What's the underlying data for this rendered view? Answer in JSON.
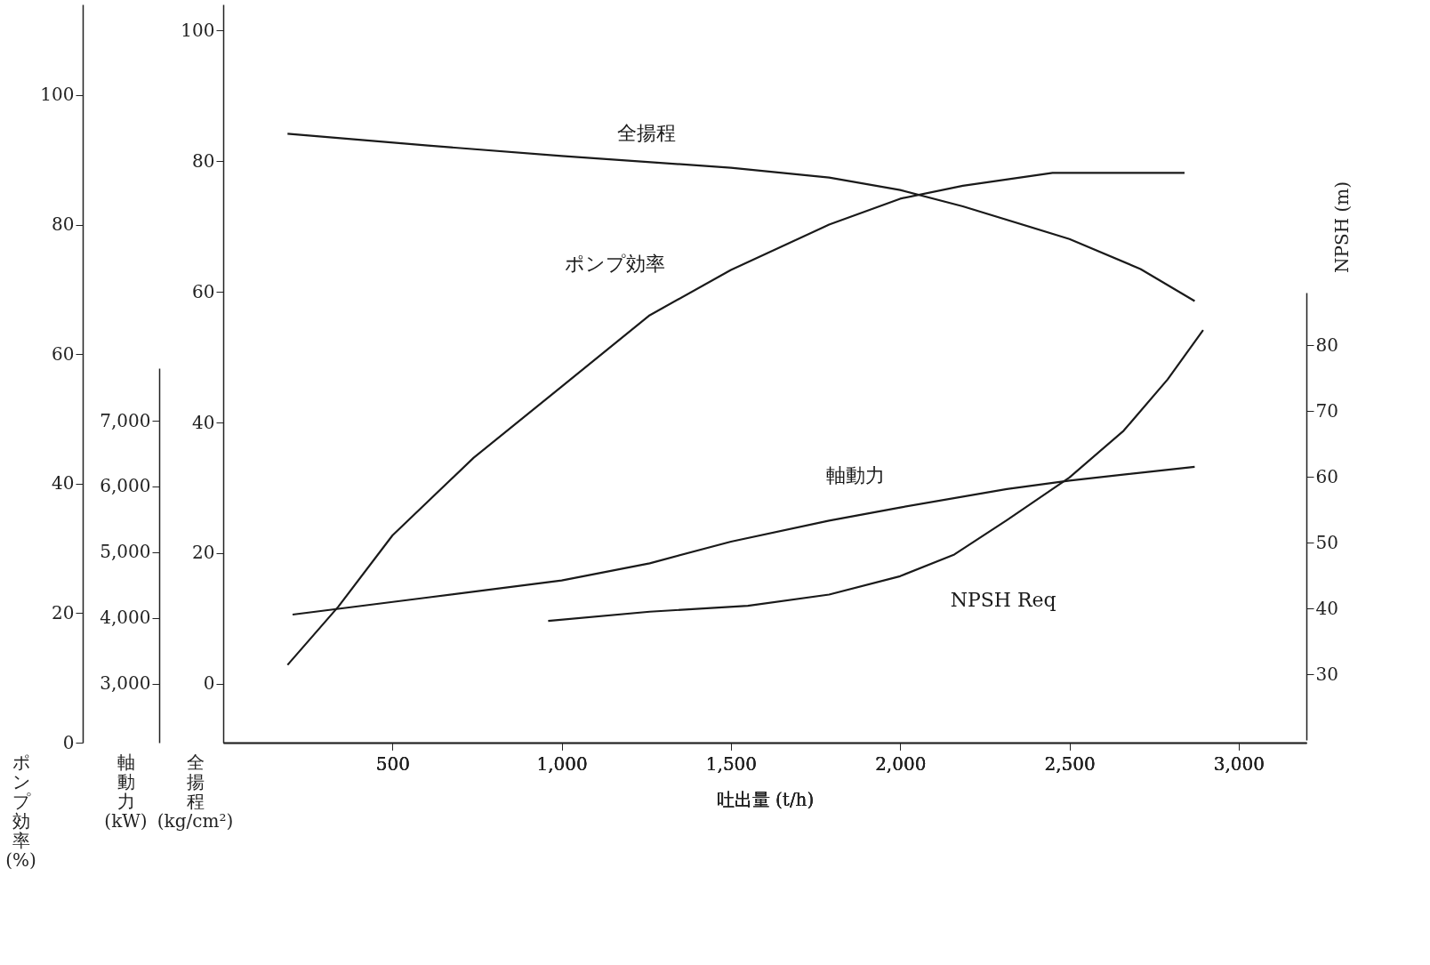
{
  "chart_data": [
    {
      "type": "line",
      "xlabel": "吐出量 (t/h)",
      "ylabel": "全揚程 (kg/cm²)",
      "y2label": "NPSH (m)",
      "y3label": "軸動力 (kW)",
      "xlim": [
        0,
        3200
      ],
      "xticks": [
        500,
        {
          "value": 1000,
          "label": "1,000"
        },
        {
          "value": 1500,
          "label": "1,500"
        },
        {
          "value": 2000,
          "label": "2,000"
        },
        {
          "value": 2500,
          "label": "2,500"
        },
        {
          "value": 3000,
          "label": "3,000"
        }
      ],
      "ylim": [
        -9,
        104
      ],
      "yticks": [
        0,
        20,
        40,
        60,
        80,
        100
      ],
      "y2lim": [
        20,
        88
      ],
      "y2ticks": [
        30,
        40,
        50,
        60,
        70,
        80
      ],
      "y3lim": [
        2100,
        7800
      ],
      "y3ticks": [
        {
          "value": 3000,
          "label": "3,000"
        },
        {
          "value": 4000,
          "label": "4,000"
        },
        {
          "value": 5000,
          "label": "5,000"
        },
        {
          "value": 6000,
          "label": "6,000"
        },
        {
          "value": 7000,
          "label": "7,000"
        }
      ],
      "series": [
        {
          "name": "全揚程",
          "color": "#1a1a1a",
          "axis": "y",
          "x": [
            190,
            605,
            1000,
            1500,
            1790,
            2000,
            2185,
            2500,
            2710,
            2870
          ],
          "values": [
            84.2,
            82.4,
            80.8,
            79.0,
            77.5,
            75.6,
            73.1,
            68.1,
            63.5,
            58.6
          ]
        },
        {
          "name": "軸動力",
          "color": "#1a1a1a",
          "axis": "y3",
          "x": [
            205,
            605,
            1000,
            1260,
            1500,
            1790,
            2000,
            2315,
            2500,
            2870
          ],
          "values": [
            4050,
            4310,
            4570,
            4830,
            5160,
            5480,
            5680,
            5960,
            6090,
            6300
          ]
        },
        {
          "name": "NPSH Req",
          "color": "#1a1a1a",
          "axis": "y2",
          "x": [
            960,
            1260,
            1550,
            1790,
            2000,
            2160,
            2315,
            2500,
            2660,
            2790,
            2895
          ],
          "values": [
            38.1,
            39.5,
            40.4,
            42.1,
            44.9,
            48.2,
            53.4,
            59.9,
            67.0,
            74.8,
            82.3
          ]
        }
      ]
    },
    {
      "type": "line",
      "ylabel": "ポンプ効率 (%)",
      "xlim": [
        0,
        3200
      ],
      "ylim": [
        0,
        114
      ],
      "yticks": [
        0,
        20,
        40,
        60,
        80,
        100
      ],
      "tick_labels": "y",
      "series": [
        {
          "name": "ポンプ効率",
          "color": "#1a1a1a",
          "x": [
            190,
            340,
            500,
            740,
            1000,
            1260,
            1500,
            1790,
            2000,
            2185,
            2450,
            2580,
            2840
          ],
          "values": [
            12,
            21,
            32,
            44,
            55,
            66,
            73,
            80,
            84,
            86,
            88,
            88,
            88
          ]
        }
      ]
    }
  ]
}
